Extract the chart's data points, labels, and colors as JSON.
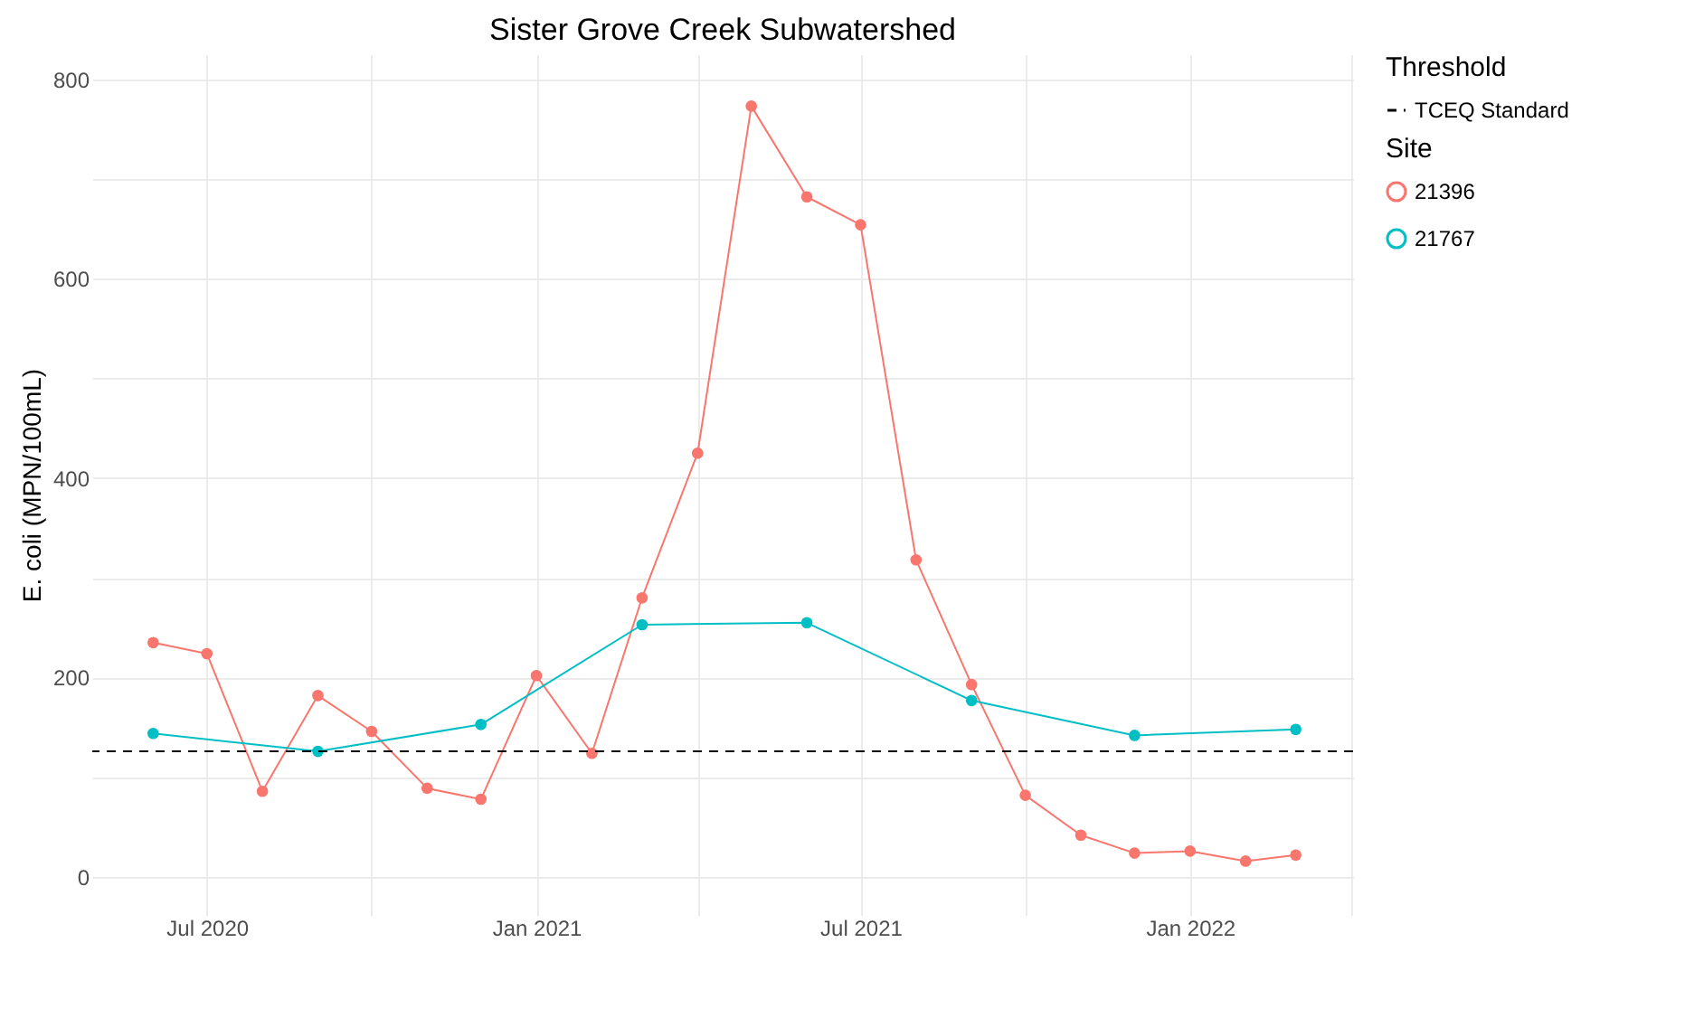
{
  "chart_data": {
    "type": "line",
    "title": "Sister Grove Creek Subwatershed",
    "ylabel": "E. coli (MPN/100mL)",
    "legend_title": "Site",
    "annotations": [
      "Threshold"
    ],
    "series": [
      {
        "name": "21396",
        "color": "#f8766d",
        "x": [
          "2020-06-01",
          "2020-07-01",
          "2020-08-01",
          "2020-09-01",
          "2020-10-01",
          "2020-11-01",
          "2020-12-01",
          "2021-01-01",
          "2021-02-01",
          "2021-03-01",
          "2021-04-01",
          "2021-05-01",
          "2021-06-01",
          "2021-07-01",
          "2021-08-01",
          "2021-09-01",
          "2021-10-01",
          "2021-11-01",
          "2021-12-01",
          "2022-01-01",
          "2022-02-01",
          "2022-03-01"
        ],
        "values": [
          235,
          224,
          86,
          182,
          146,
          89,
          78,
          202,
          124,
          280,
          425,
          773,
          682,
          654,
          318,
          193,
          82,
          42,
          24,
          26,
          16,
          22
        ]
      },
      {
        "name": "21767",
        "color": "#00bfc4",
        "x": [
          "2020-06-01",
          "2020-09-01",
          "2020-12-01",
          "2021-03-01",
          "2021-06-01",
          "2021-09-01",
          "2021-12-01",
          "2022-03-01"
        ],
        "values": [
          144,
          126,
          153,
          253,
          255,
          177,
          142,
          148
        ]
      }
    ],
    "xlim": [
      "2020-04-28",
      "2022-04-02"
    ],
    "xticks": [
      {
        "value": "2020-07-01",
        "label": "Jul 2020"
      },
      {
        "value": "2020-10-01",
        "label": null
      },
      {
        "value": "2021-01-01",
        "label": "Jan 2021"
      },
      {
        "value": "2021-04-01",
        "label": null
      },
      {
        "value": "2021-07-01",
        "label": "Jul 2021"
      },
      {
        "value": "2021-10-01",
        "label": null
      },
      {
        "value": "2022-01-01",
        "label": "Jan 2022"
      },
      {
        "value": "2022-04-01",
        "label": null
      }
    ],
    "ylim": [
      -38,
      825
    ],
    "yticks": [
      0,
      {
        "value": 100,
        "label": null
      },
      200,
      {
        "value": 300,
        "label": null
      },
      400,
      {
        "value": 500,
        "label": null
      },
      600,
      {
        "value": 700,
        "label": null
      },
      800
    ],
    "ref_lines": [
      {
        "axis": "y",
        "value": 126,
        "label": "TCEQ Standard",
        "color": "#000000",
        "line_style": "dashed"
      }
    ],
    "grid": true,
    "legend": "right",
    "marker": "circle",
    "line_style": "solid"
  }
}
